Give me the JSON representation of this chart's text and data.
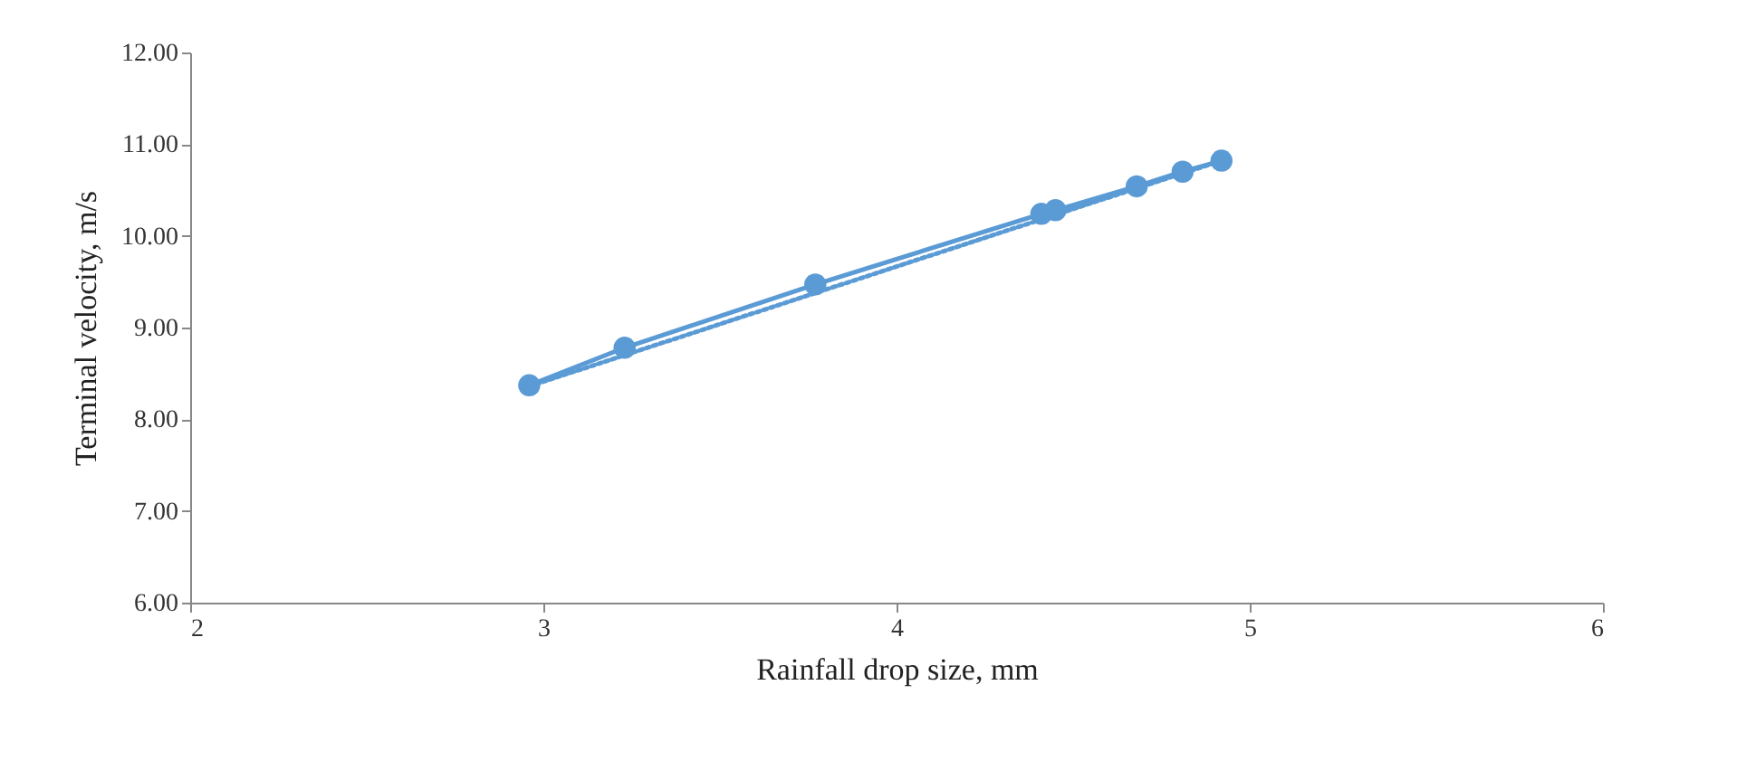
{
  "chart_data": {
    "type": "line",
    "xlabel": "Rainfall drop size, mm",
    "ylabel": "Terminal velocity, m/s",
    "xlim": [
      2,
      6
    ],
    "xticks": [
      2,
      3,
      4,
      5,
      6
    ],
    "ylim": [
      6,
      12
    ],
    "yticks": [
      {
        "value": 6,
        "label": "6.00"
      },
      {
        "value": 7,
        "label": "7.00"
      },
      {
        "value": 8,
        "label": "8.00"
      },
      {
        "value": 9,
        "label": "9.00"
      },
      {
        "value": 10,
        "label": "10.00"
      },
      {
        "value": 11,
        "label": "11.00"
      },
      {
        "value": 12,
        "label": "12.00"
      }
    ],
    "grid": false,
    "marker": "circle",
    "line_style": "solid",
    "series": [
      {
        "color": "#5b9bd5",
        "x": [
          2.96,
          3.23,
          3.77,
          4.41,
          4.45,
          4.68,
          4.81,
          4.92
        ],
        "values": [
          8.37,
          8.78,
          9.47,
          10.24,
          10.28,
          10.54,
          10.7,
          10.82
        ]
      },
      {
        "type": "line",
        "color": "#5b9bd5",
        "marker": "none",
        "line_style": "dotted",
        "x": [
          2.96,
          4.92
        ],
        "values": [
          8.36,
          10.82
        ]
      }
    ]
  }
}
